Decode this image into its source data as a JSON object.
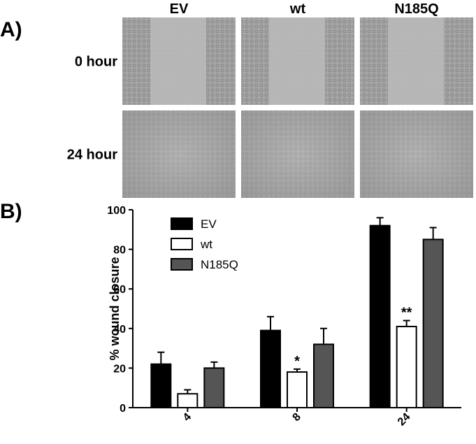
{
  "panel_a": {
    "label": "A)",
    "columns": [
      "EV",
      "wt",
      "N185Q"
    ],
    "rows": [
      "0 hour",
      "24 hour"
    ]
  },
  "panel_b": {
    "label": "B)"
  },
  "chart_data": {
    "type": "bar",
    "ylabel": "% wound closure",
    "categories": [
      "4",
      "8",
      "24"
    ],
    "series": [
      {
        "name": "EV",
        "color": "#000000",
        "values": [
          22,
          39,
          92
        ],
        "errors": [
          6,
          7,
          4
        ]
      },
      {
        "name": "wt",
        "color": "#ffffff",
        "values": [
          7,
          18,
          41
        ],
        "errors": [
          2,
          1.5,
          3
        ],
        "annotations": [
          null,
          "*",
          "**"
        ]
      },
      {
        "name": "N185Q",
        "color": "#555555",
        "values": [
          20,
          32,
          85
        ],
        "errors": [
          3,
          8,
          6
        ]
      }
    ],
    "ylim": [
      0,
      100
    ],
    "yticks": [
      0,
      20,
      40,
      60,
      80,
      100
    ],
    "legend": "top-left"
  }
}
